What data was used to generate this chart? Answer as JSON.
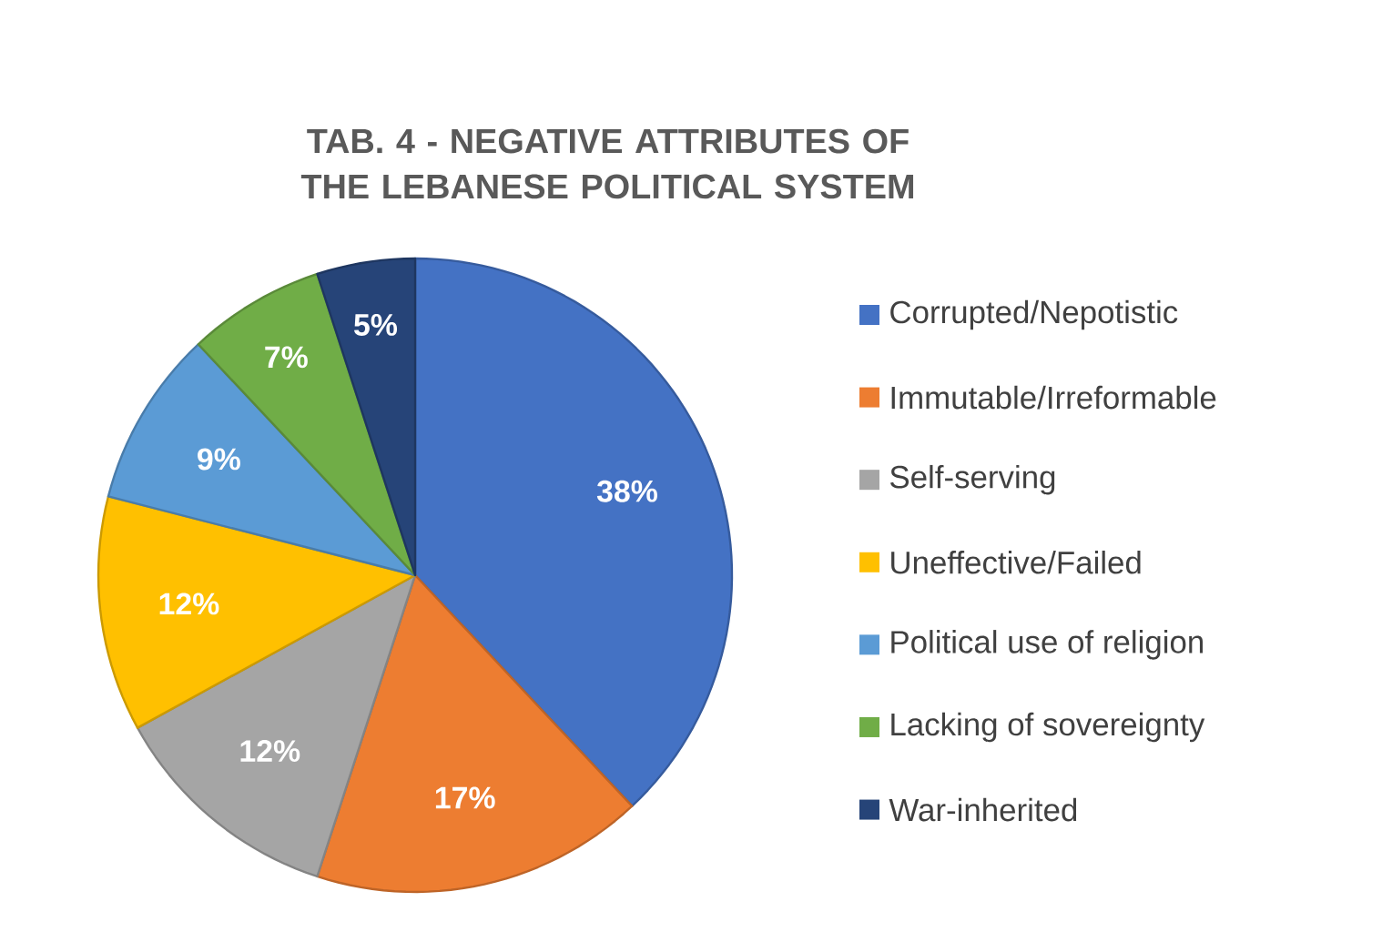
{
  "chart_data": {
    "type": "pie",
    "title": "TAB. 4 - NEGATIVE ATTRIBUTES OF THE LEBANESE POLITICAL SYSTEM",
    "categories": [
      "Corrupted/Nepotistic",
      "Immutable/Irreformable",
      "Self-serving",
      "Uneffective/Failed",
      "Political use of religion",
      "Lacking of sovereignty",
      "War-inherited"
    ],
    "values": [
      38,
      17,
      12,
      12,
      9,
      7,
      5
    ],
    "value_labels": [
      "38%",
      "17%",
      "12%",
      "12%",
      "9%",
      "7%",
      "5%"
    ],
    "colors": [
      "#4472c4",
      "#ed7d31",
      "#a5a5a5",
      "#ffc000",
      "#5b9bd5",
      "#70ad47",
      "#264478"
    ],
    "legend": "right"
  }
}
